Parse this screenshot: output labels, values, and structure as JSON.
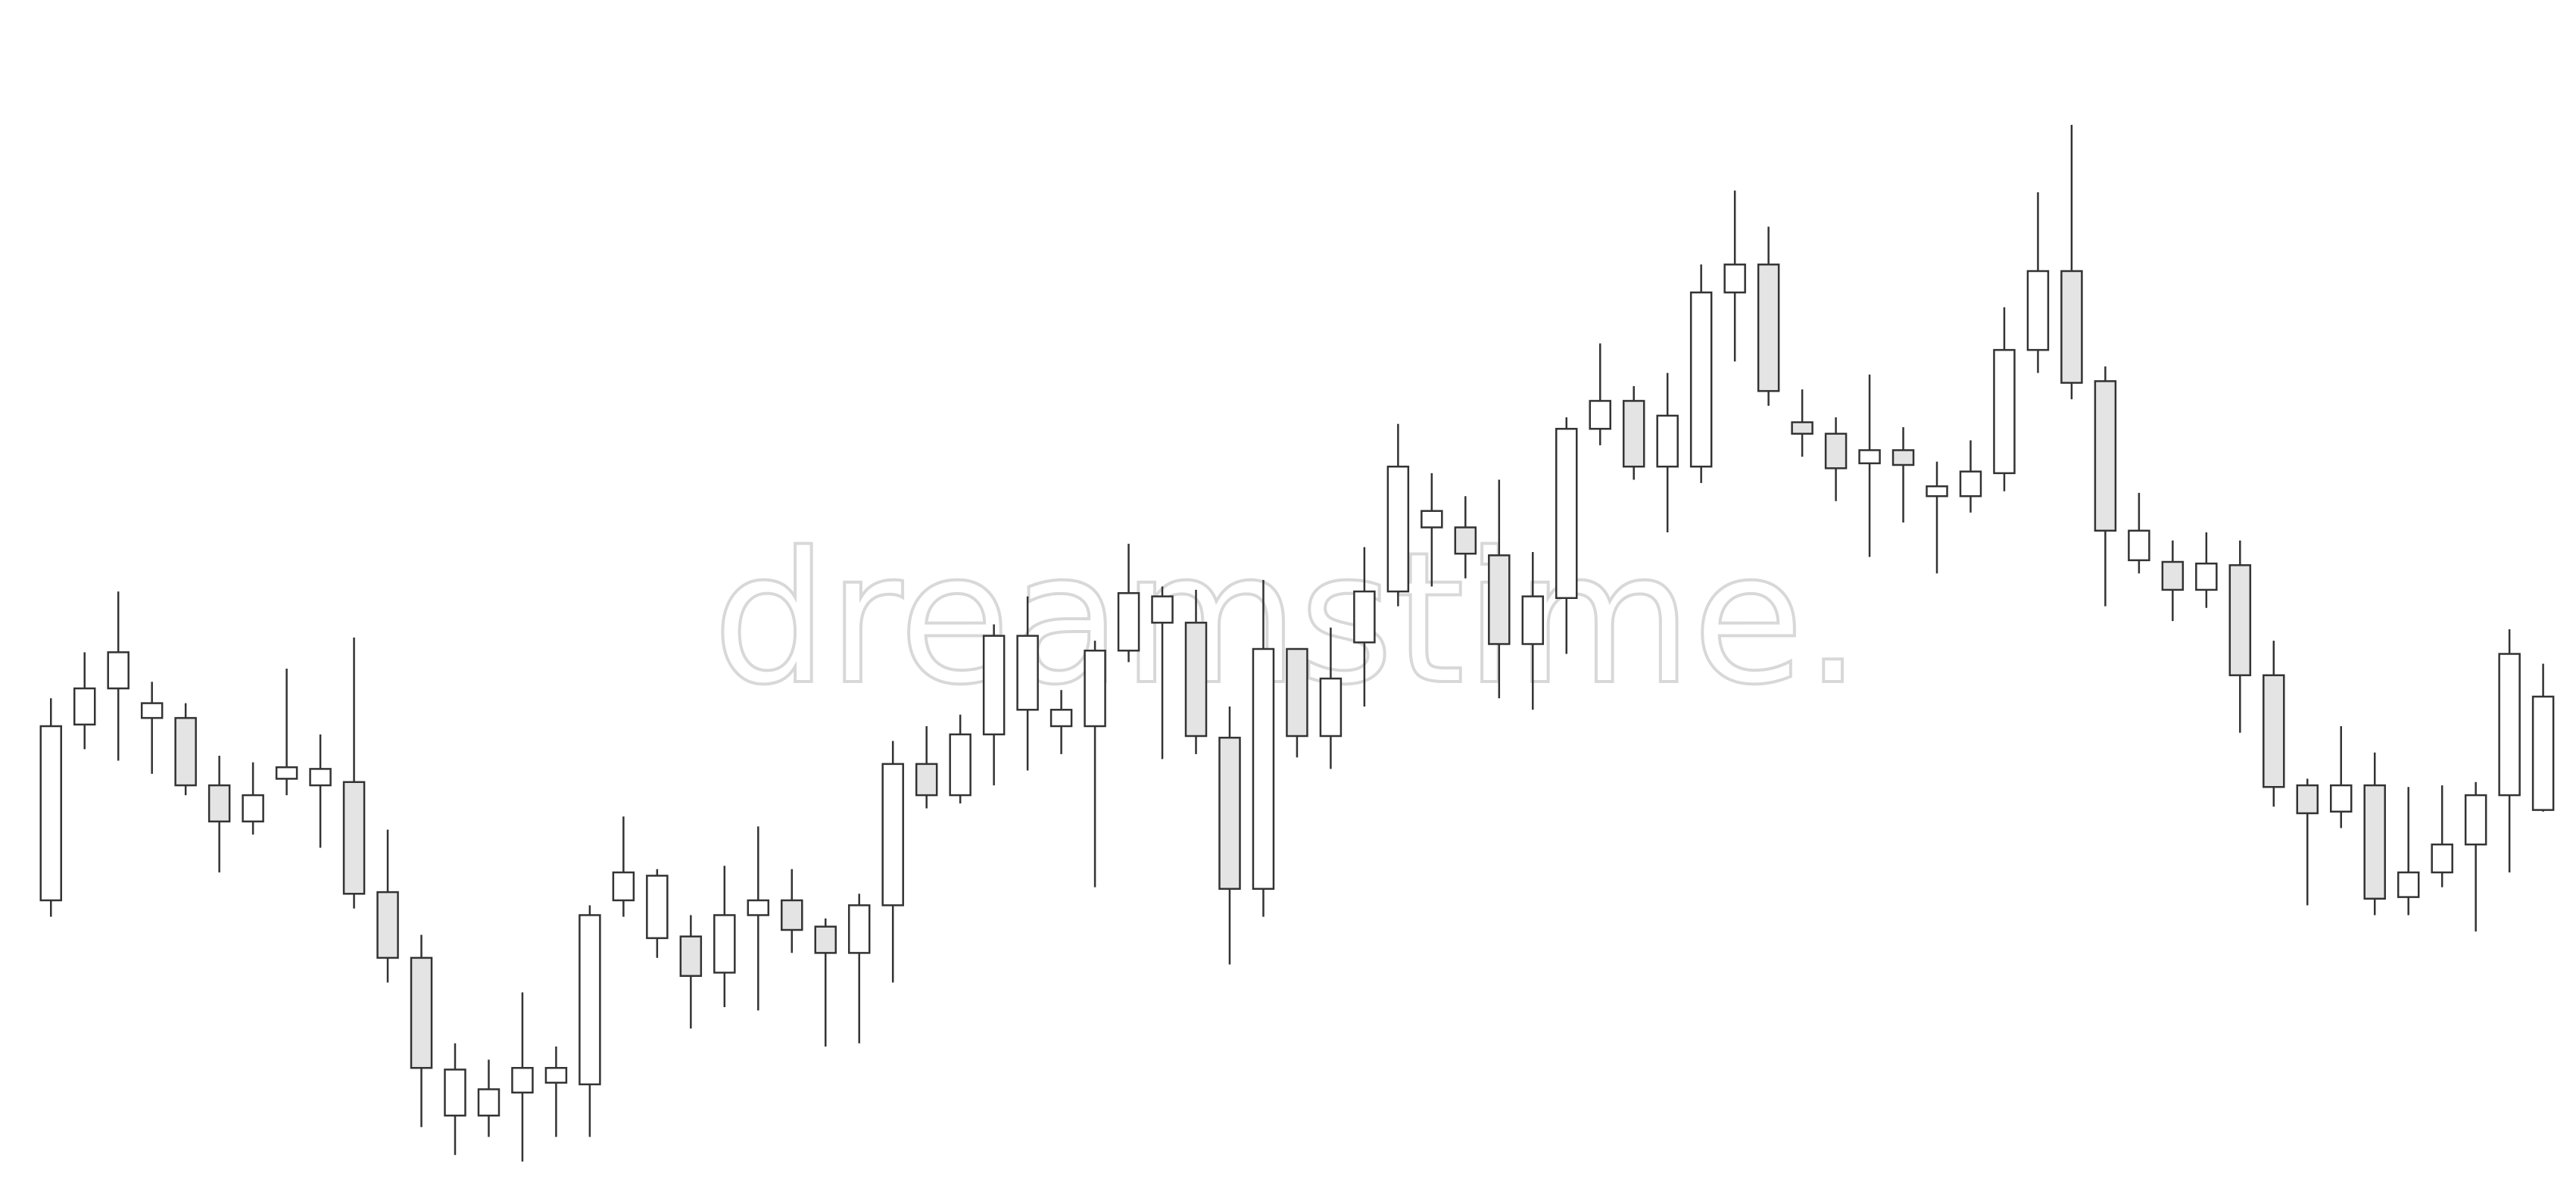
{
  "chart_data": {
    "type": "candlestick",
    "watermark": "dreamstime.",
    "up_color": "#ffffff",
    "down_color": "#e4e4e4",
    "edge_color": "#333333",
    "ylim": [
      0,
      731
    ],
    "series": [
      {
        "open": [
          183,
          290,
          312,
          294,
          294,
          253,
          231,
          257,
          253,
          255,
          188,
          148,
          52,
          52,
          66,
          72,
          71,
          183,
          160,
          161,
          139,
          174,
          183,
          167,
          151,
          180,
          266,
          247,
          284,
          299,
          289,
          289,
          335,
          352,
          352,
          282,
          190,
          336,
          283,
          340,
          371,
          410,
          410,
          393,
          339,
          367,
          470,
          487,
          447,
          447,
          553,
          570,
          474,
          467,
          449,
          457,
          429,
          429,
          443,
          518,
          566,
          499,
          390,
          389,
          372,
          387,
          320,
          253,
          237,
          253,
          185,
          200,
          217,
          247,
          238
        ],
        "high": [
          306,
          334,
          371,
          316,
          303,
          271,
          267,
          324,
          284,
          343,
          226,
          162,
          96,
          86,
          127,
          94,
          180,
          234,
          202,
          174,
          204,
          228,
          202,
          172,
          187,
          280,
          289,
          296,
          351,
          368,
          311,
          341,
          400,
          374,
          372,
          301,
          378,
          336,
          349,
          398,
          473,
          443,
          429,
          439,
          395,
          477,
          522,
          496,
          504,
          570,
          615,
          593,
          494,
          477,
          503,
          471,
          450,
          463,
          544,
          614,
          655,
          508,
          431,
          402,
          407,
          402,
          341,
          257,
          289,
          273,
          252,
          253,
          255,
          348,
          327
        ],
        "low": [
          173,
          275,
          268,
          260,
          247,
          200,
          223,
          247,
          215,
          178,
          133,
          45,
          28,
          39,
          24,
          39,
          39,
          173,
          148,
          105,
          118,
          116,
          151,
          94,
          96,
          133,
          239,
          242,
          253,
          262,
          272,
          191,
          328,
          269,
          272,
          144,
          173,
          270,
          263,
          301,
          362,
          374,
          379,
          306,
          299,
          333,
          460,
          439,
          407,
          437,
          511,
          484,
          453,
          426,
          392,
          413,
          382,
          419,
          432,
          504,
          488,
          362,
          382,
          353,
          361,
          285,
          240,
          180,
          227,
          174,
          174,
          191,
          164,
          200,
          237
        ],
        "close": [
          289,
          312,
          334,
          303,
          253,
          231,
          247,
          264,
          263,
          187,
          148,
          81,
          80,
          68,
          81,
          81,
          174,
          200,
          198,
          137,
          174,
          183,
          165,
          151,
          180,
          266,
          247,
          284,
          344,
          344,
          299,
          335,
          370,
          368,
          283,
          190,
          336,
          283,
          318,
          371,
          447,
          420,
          394,
          339,
          368,
          470,
          487,
          447,
          478,
          553,
          570,
          493,
          467,
          446,
          457,
          448,
          435,
          444,
          518,
          566,
          498,
          408,
          408,
          372,
          388,
          320,
          252,
          236,
          253,
          184,
          200,
          217,
          247,
          333,
          307
        ]
      }
    ]
  }
}
